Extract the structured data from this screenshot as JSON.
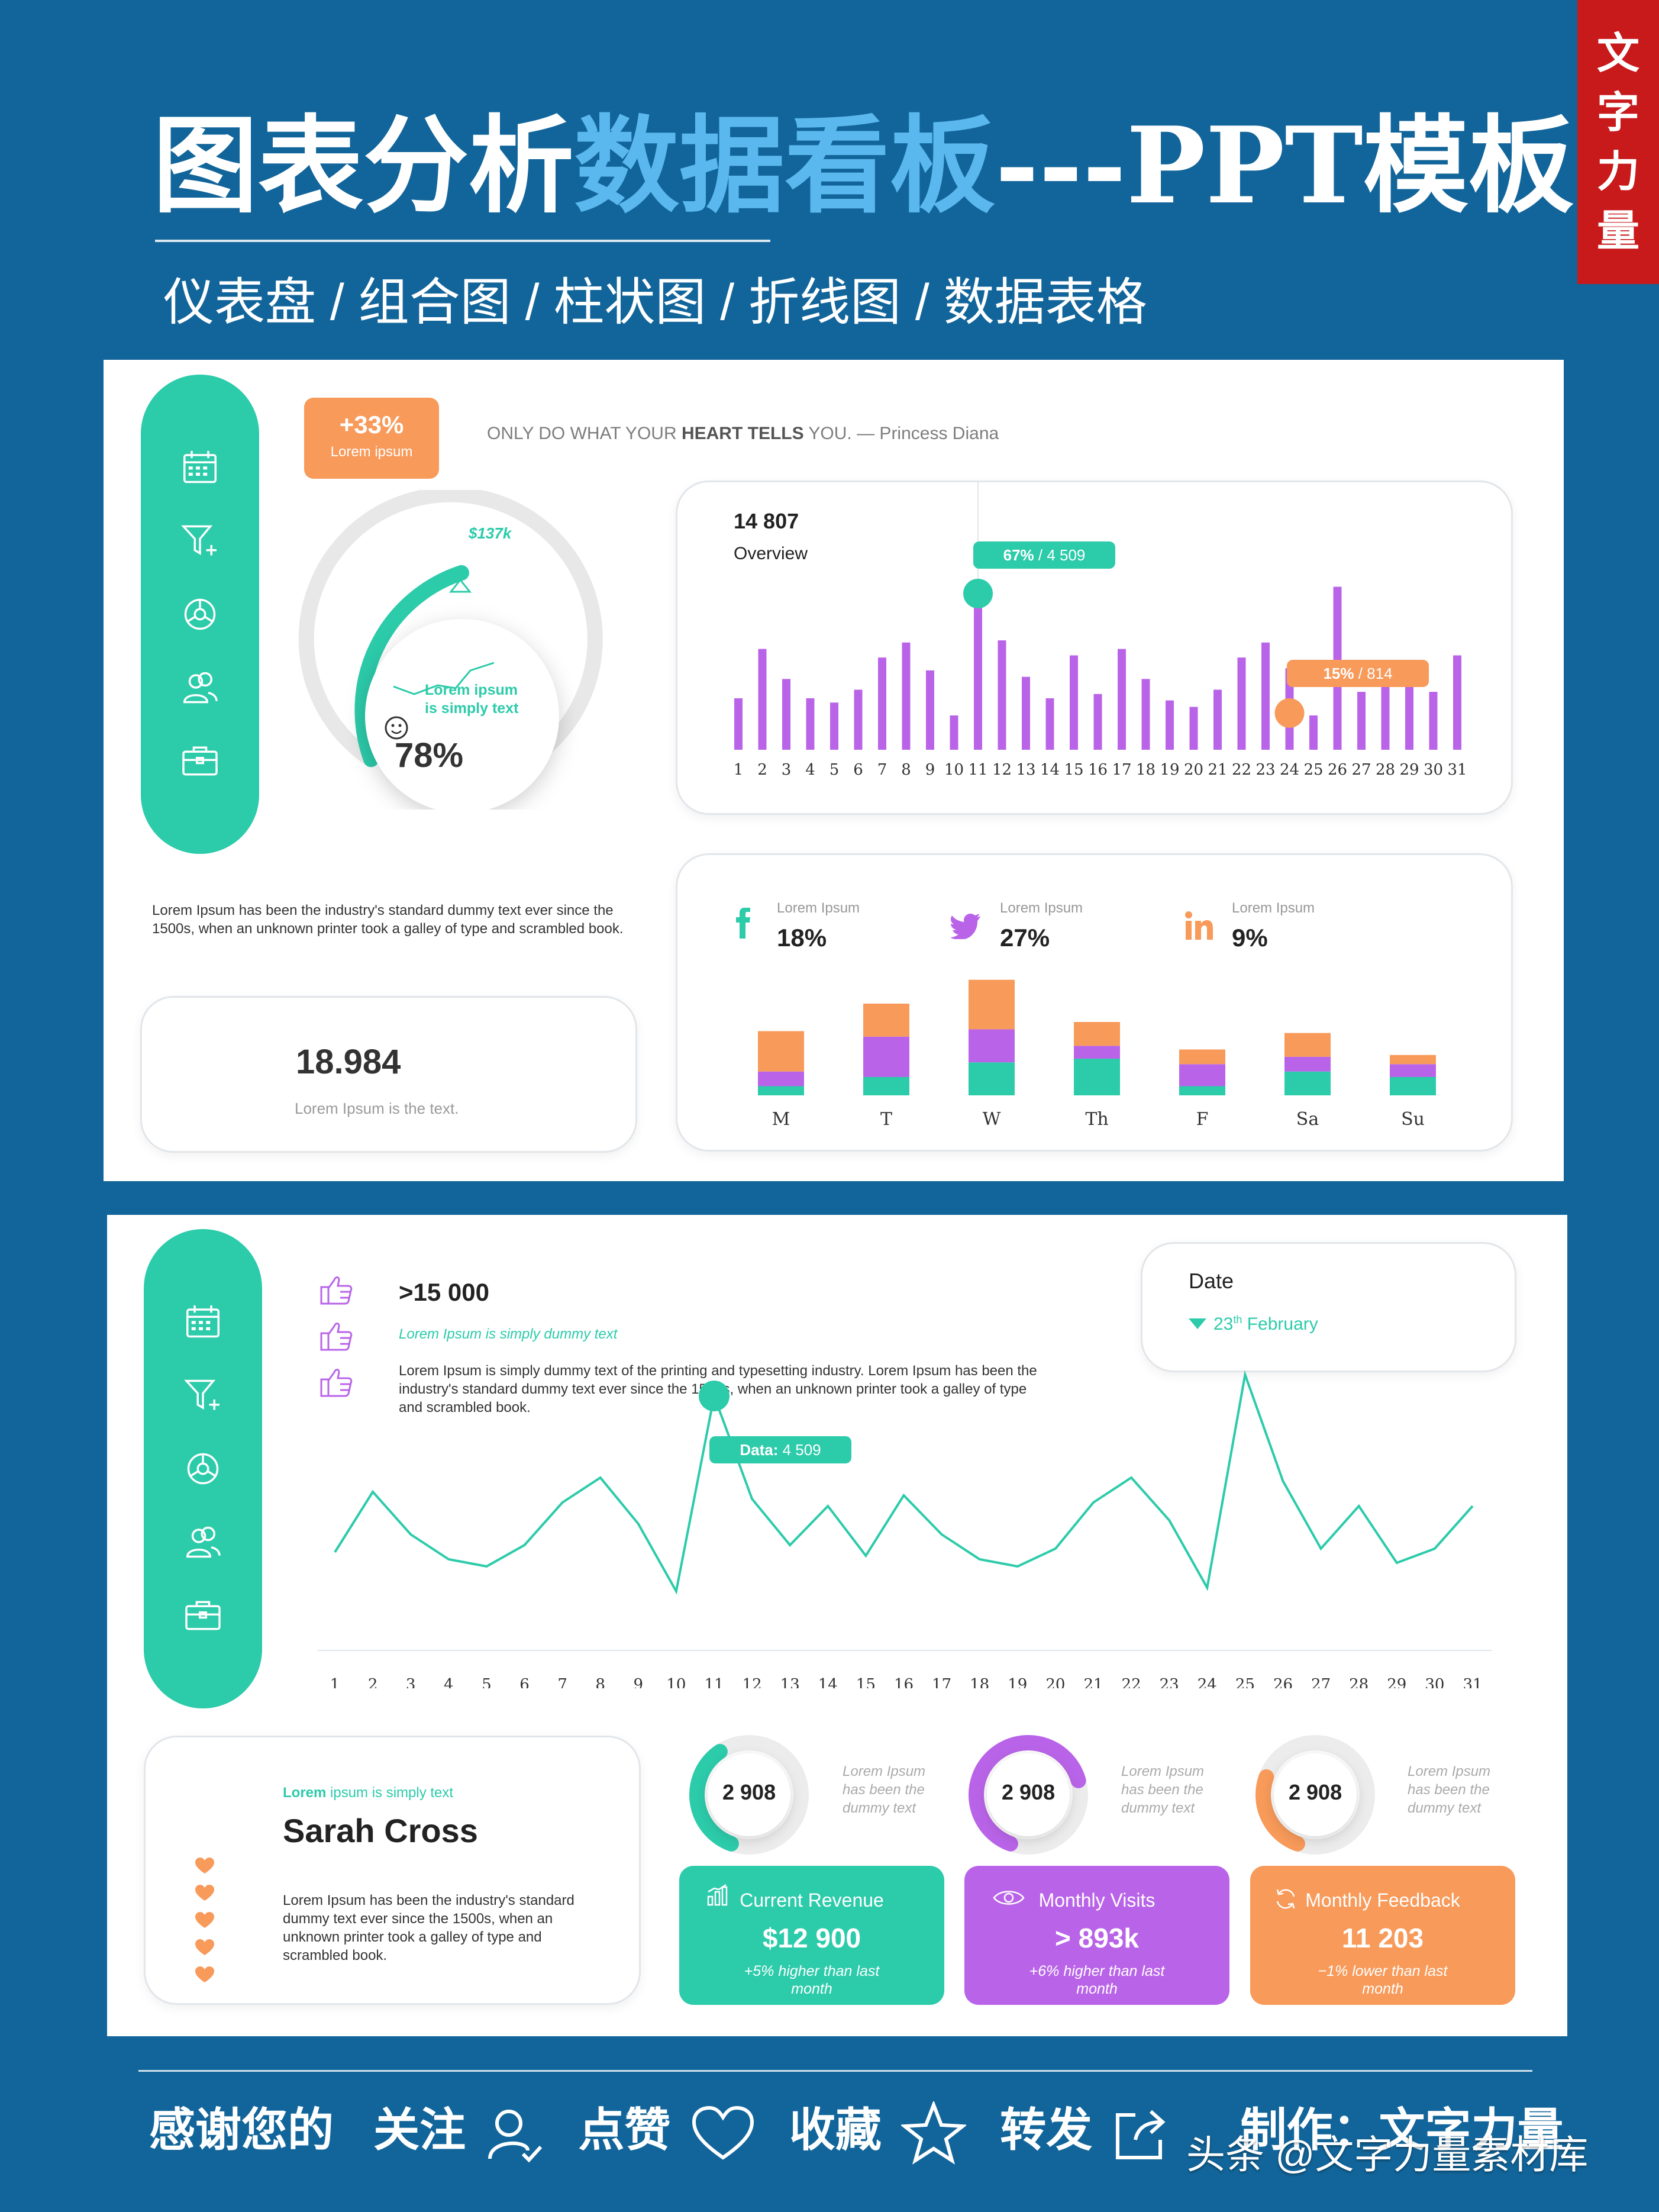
{
  "header": {
    "title_part1": "图表分析",
    "title_part2": "数据看板",
    "title_part3": "---PPT模板",
    "subtitle": "仪表盘 / 组合图 / 柱状图 / 折线图 / 数据表格",
    "brand_tag": [
      "文",
      "字",
      "力",
      "量"
    ]
  },
  "colors": {
    "teal": "#2ccbaa",
    "purple": "#b964e8",
    "orange": "#f79a5a",
    "navy": "#12659a",
    "light_blue": "#5ab8ee"
  },
  "sidebar_icons": [
    "calendar-icon",
    "funnel-plus-icon",
    "settings-icon",
    "users-icon",
    "briefcase-icon"
  ],
  "panel1": {
    "badge": {
      "value": "+33%",
      "label": "Lorem ipsum"
    },
    "quote_prefix": "ONLY DO WHAT YOUR ",
    "quote_bold": "HEART TELLS",
    "quote_suffix": " YOU. — Princess Diana",
    "gauge": {
      "label": "$137k",
      "text_line1": "Lorem ipsum",
      "text_line2": "is simply text",
      "percent": "78%",
      "fill": 0.78
    },
    "description": "Lorem Ipsum has been the industry's standard dummy text ever since the 1500s, when an unknown printer took a galley of type and scrambled book.",
    "metric": {
      "value": "18.984",
      "label": "Lorem Ipsum is the text."
    },
    "overview": {
      "value": "14 807",
      "label": "Overview",
      "tooltip1": {
        "bold": "67%",
        "rest": " / 4 509"
      },
      "tooltip2": {
        "bold": "15%",
        "rest": " / 814"
      }
    },
    "social": [
      {
        "icon": "facebook-icon",
        "label": "Lorem Ipsum",
        "value": "18%"
      },
      {
        "icon": "twitter-icon",
        "label": "Lorem Ipsum",
        "value": "27%"
      },
      {
        "icon": "linkedin-icon",
        "label": "Lorem Ipsum",
        "value": "9%"
      }
    ]
  },
  "panel2": {
    "likes": {
      "value": ">15 000",
      "subtitle": "Lorem Ipsum is simply dummy text",
      "text": "Lorem Ipsum is simply dummy text of the printing and typesetting industry. Lorem Ipsum has been the industry's standard dummy text ever since the 1500s, when an unknown printer took a galley of type and scrambled book."
    },
    "date": {
      "label": "Date",
      "value_day": "23",
      "value_sup": "th",
      "value_month": " February"
    },
    "line_tooltip": {
      "bold": "Data:",
      "rest": " 4 509"
    },
    "profile": {
      "subtitle_bold": "Lorem",
      "subtitle_rest": " ipsum is simply text",
      "name": "Sarah Cross",
      "text": "Lorem Ipsum has been the industry's standard dummy text ever since the 1500s, when an unknown printer took a galley of type and scrambled book."
    },
    "donuts": [
      {
        "value": "2 908",
        "text": "Lorem Ipsum has been the dummy text",
        "color": "#2ccbaa",
        "fill": 0.35
      },
      {
        "value": "2 908",
        "text": "Lorem Ipsum has been the dummy text",
        "color": "#b964e8",
        "fill": 0.65
      },
      {
        "value": "2 908",
        "text": "Lorem Ipsum has been the dummy text",
        "color": "#f79a5a",
        "fill": 0.25
      }
    ],
    "stat_cards": [
      {
        "icon": "bar-chart-icon",
        "title": "Current Revenue",
        "value": "$12 900",
        "sub": "+5% higher than last month",
        "color": "#2ccbaa"
      },
      {
        "icon": "eye-icon",
        "title": "Monthly Visits",
        "value": "> 893k",
        "sub": "+6% higher than last month",
        "color": "#b964e8"
      },
      {
        "icon": "refresh-icon",
        "title": "Monthly Feedback",
        "value": "11 203",
        "sub": "−1% lower than last month",
        "color": "#f79a5a"
      }
    ]
  },
  "footer": {
    "text1": "感谢您的",
    "text2": "关注",
    "text3": "点赞",
    "text4": "收藏",
    "text5": "转发",
    "text6": "制作：文字力量",
    "watermark": "头条 @文字力量素材库"
  },
  "chart_data": [
    {
      "type": "bar",
      "categories": [
        "1",
        "2",
        "3",
        "4",
        "5",
        "6",
        "7",
        "8",
        "9",
        "10",
        "11",
        "12",
        "13",
        "14",
        "15",
        "16",
        "17",
        "18",
        "19",
        "20",
        "21",
        "22",
        "23",
        "24",
        "25",
        "26",
        "27",
        "28",
        "29",
        "30",
        "31"
      ],
      "values": [
        24,
        47,
        33,
        24,
        22,
        28,
        43,
        50,
        37,
        16,
        72,
        51,
        34,
        24,
        44,
        26,
        47,
        33,
        23,
        20,
        28,
        43,
        50,
        38,
        16,
        76,
        27,
        38,
        32,
        27,
        44
      ],
      "ylim": [
        0,
        100
      ]
    },
    {
      "type": "bar",
      "categories": [
        "M",
        "T",
        "W",
        "Th",
        "F",
        "Sa",
        "Su"
      ],
      "series": [
        {
          "values": [
            5,
            10,
            18,
            20,
            5,
            13,
            10
          ]
        },
        {
          "values": [
            8,
            22,
            18,
            7,
            12,
            8,
            7
          ]
        },
        {
          "values": [
            22,
            18,
            27,
            13,
            8,
            13,
            5
          ]
        }
      ],
      "ylim": [
        0,
        70
      ]
    },
    {
      "type": "line",
      "categories": [
        "1",
        "2",
        "3",
        "4",
        "5",
        "6",
        "7",
        "8",
        "9",
        "10",
        "11",
        "12",
        "13",
        "14",
        "15",
        "16",
        "17",
        "18",
        "19",
        "20",
        "21",
        "22",
        "23",
        "24",
        "25",
        "26",
        "27",
        "28",
        "29",
        "30",
        "31"
      ],
      "values": [
        20,
        37,
        25,
        18,
        16,
        22,
        34,
        41,
        28,
        9,
        64,
        35,
        22,
        33,
        19,
        36,
        25,
        18,
        16,
        21,
        34,
        41,
        29,
        10,
        70,
        40,
        21,
        33,
        17,
        21,
        33
      ],
      "ylim": [
        0,
        80
      ]
    }
  ]
}
